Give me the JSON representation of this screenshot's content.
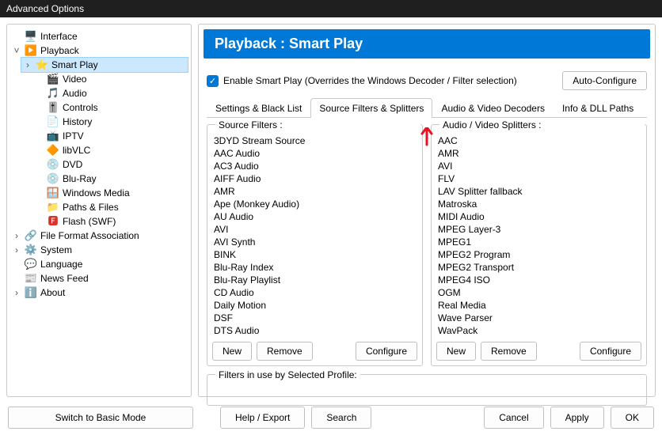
{
  "window": {
    "title": "Advanced Options"
  },
  "tree": [
    {
      "indent": 0,
      "exp": "",
      "icon": "🖥️",
      "label": "Interface",
      "sel": false
    },
    {
      "indent": 0,
      "exp": "˅",
      "icon": "▶️",
      "label": "Playback",
      "sel": false,
      "iconColor": "#f5a623"
    },
    {
      "indent": 1,
      "exp": "›",
      "icon": "⭐",
      "label": "Smart Play",
      "sel": true,
      "iconColor": "#f5a623"
    },
    {
      "indent": 2,
      "exp": "",
      "icon": "🎬",
      "label": "Video",
      "sel": false
    },
    {
      "indent": 2,
      "exp": "",
      "icon": "🎵",
      "label": "Audio",
      "sel": false,
      "iconColor": "#f5a623"
    },
    {
      "indent": 2,
      "exp": "",
      "icon": "🎚️",
      "label": "Controls",
      "sel": false
    },
    {
      "indent": 2,
      "exp": "",
      "icon": "📄",
      "label": "History",
      "sel": false
    },
    {
      "indent": 2,
      "exp": "",
      "icon": "📺",
      "label": "IPTV",
      "sel": false,
      "iconColor": "#d35400"
    },
    {
      "indent": 2,
      "exp": "",
      "icon": "🔶",
      "label": "libVLC",
      "sel": false
    },
    {
      "indent": 2,
      "exp": "",
      "icon": "💿",
      "label": "DVD",
      "sel": false
    },
    {
      "indent": 2,
      "exp": "",
      "icon": "💿",
      "label": "Blu-Ray",
      "sel": false,
      "iconColor": "#2b7de9"
    },
    {
      "indent": 2,
      "exp": "",
      "icon": "🪟",
      "label": "Windows Media",
      "sel": false
    },
    {
      "indent": 2,
      "exp": "",
      "icon": "📁",
      "label": "Paths & Files",
      "sel": false,
      "iconColor": "#f5a623"
    },
    {
      "indent": 2,
      "exp": "",
      "icon": "🅵",
      "label": "Flash (SWF)",
      "sel": false,
      "iconColor": "#d9342b"
    },
    {
      "indent": 0,
      "exp": "›",
      "icon": "🔗",
      "label": "File Format Association",
      "sel": false,
      "iconColor": "#f5a623"
    },
    {
      "indent": 0,
      "exp": "›",
      "icon": "⚙️",
      "label": "System",
      "sel": false,
      "iconColor": "#f5a623"
    },
    {
      "indent": 0,
      "exp": "",
      "icon": "💬",
      "label": "Language",
      "sel": false
    },
    {
      "indent": 0,
      "exp": "",
      "icon": "📰",
      "label": "News Feed",
      "sel": false
    },
    {
      "indent": 0,
      "exp": "›",
      "icon": "ℹ️",
      "label": "About",
      "sel": false,
      "iconColor": "#2b7de9"
    }
  ],
  "heading": "Playback : Smart Play",
  "enable": {
    "checked": true,
    "label": "Enable Smart Play (Overrides the Windows Decoder / Filter selection)"
  },
  "autoConfigure": "Auto-Configure",
  "tabs": [
    {
      "label": "Settings & Black List",
      "active": false
    },
    {
      "label": "Source Filters & Splitters",
      "active": true
    },
    {
      "label": "Audio & Video Decoders",
      "active": false
    },
    {
      "label": "Info & DLL Paths",
      "active": false
    }
  ],
  "sourceFilters": {
    "title": "Source Filters :",
    "items": [
      "3DYD Stream Source",
      "AAC Audio",
      "AC3 Audio",
      "AIFF Audio",
      "AMR",
      "Ape (Monkey Audio)",
      "AU Audio",
      "AVI",
      "AVI Synth",
      "BINK",
      "Blu-Ray Index",
      "Blu-Ray Playlist",
      "CD Audio",
      "Daily Motion",
      "DSF",
      "DTS Audio"
    ],
    "buttons": {
      "new": "New",
      "remove": "Remove",
      "configure": "Configure"
    }
  },
  "splitters": {
    "title": "Audio / Video Splitters :",
    "items": [
      "AAC",
      "AMR",
      "AVI",
      "FLV",
      "LAV Splitter fallback",
      "Matroska",
      "MIDI Audio",
      "MPEG Layer-3",
      "MPEG1",
      "MPEG2 Program",
      "MPEG2 Transport",
      "MPEG4 ISO",
      "OGM",
      "Real Media",
      "Wave Parser",
      "WavPack"
    ],
    "buttons": {
      "new": "New",
      "remove": "Remove",
      "configure": "Configure"
    }
  },
  "filtersInUse": "Filters in use by Selected Profile:",
  "footer": {
    "switchBasic": "Switch to Basic Mode",
    "help": "Help / Export",
    "search": "Search",
    "cancel": "Cancel",
    "apply": "Apply",
    "ok": "OK"
  },
  "colors": {
    "headingBg": "#0078d7",
    "accent": "#0078d7",
    "arrow": "#e81123",
    "border": "#c9c9c9",
    "selection": "#cce8ff"
  }
}
